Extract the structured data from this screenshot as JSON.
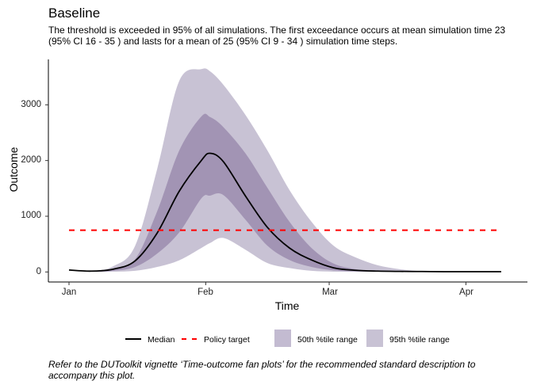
{
  "title": "Baseline",
  "subtitle": "The threshold is exceeded in 95% of all simulations. The first exceedance occurs at mean simulation time 23 (95% CI 16 - 35 ) and lasts for a mean of 25 (95% CI 9 - 34 ) simulation time steps.",
  "caption": "Refer to the DUToolkit vignette ‘Time-outcome fan plots’ for the recommended standard description to accompany this plot.",
  "chart_data": {
    "type": "area",
    "xlabel": "Time",
    "ylabel": "Outcome",
    "x_ticks": [
      "Jan",
      "Feb",
      "Mar",
      "Apr"
    ],
    "y_ticks": [
      "0",
      "1000",
      "2000",
      "3000"
    ],
    "ylim": [
      -180,
      3815
    ],
    "grid": false,
    "legend_position": "bottom",
    "x": [
      "Jan 1",
      "Jan 6",
      "Jan 11",
      "Jan 16",
      "Jan 21",
      "Jan 26",
      "Jan 31",
      "Feb 2",
      "Feb 5",
      "Feb 10",
      "Feb 15",
      "Feb 20",
      "Feb 25",
      "Mar 2",
      "Mar 7",
      "Mar 12",
      "Mar 17",
      "Mar 22",
      "Mar 27",
      "Apr 1",
      "Apr 6",
      "Apr 9"
    ],
    "series": [
      {
        "name": "Median",
        "kind": "line",
        "color": "#000000",
        "values": [
          35,
          15,
          50,
          200,
          700,
          1450,
          2000,
          2130,
          1980,
          1365,
          800,
          430,
          215,
          75,
          30,
          15,
          10,
          8,
          5,
          5,
          5,
          5
        ]
      },
      {
        "name": "Policy target",
        "kind": "hline",
        "color": "#ff0000",
        "value": 750
      }
    ],
    "bands": [
      {
        "name": "95th %tile range",
        "color": "#c8c2d4",
        "lower": [
          35,
          5,
          5,
          20,
          90,
          210,
          430,
          520,
          610,
          400,
          160,
          70,
          20,
          5,
          5,
          5,
          5,
          5,
          5,
          5,
          5,
          5
        ],
        "upper": [
          35,
          20,
          100,
          470,
          1850,
          3430,
          3640,
          3600,
          3360,
          2820,
          2180,
          1470,
          900,
          470,
          260,
          120,
          50,
          15,
          5,
          5,
          5,
          5
        ]
      },
      {
        "name": "50th %tile range",
        "color": "#a294b4",
        "lower": [
          35,
          10,
          20,
          90,
          330,
          710,
          1320,
          1370,
          1380,
          940,
          470,
          215,
          90,
          30,
          10,
          5,
          5,
          5,
          5,
          5,
          5,
          5
        ],
        "upper": [
          35,
          15,
          60,
          230,
          1090,
          2180,
          2790,
          2780,
          2600,
          2130,
          1510,
          900,
          430,
          150,
          50,
          15,
          8,
          5,
          5,
          5,
          5,
          5
        ]
      }
    ],
    "legend": [
      "Median",
      "Policy target",
      "50th %tile range",
      "95th %tile range"
    ]
  }
}
